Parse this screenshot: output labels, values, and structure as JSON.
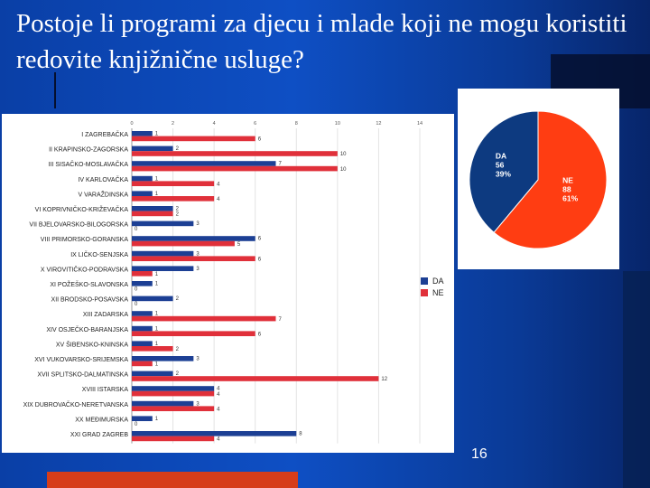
{
  "slide": {
    "title": "Postoje li programi za djecu i mlade koji ne mogu koristiti redovite knjižnične usluge?",
    "page_number": "16",
    "colors": {
      "background": "#0e4fc4",
      "da": "#1c3f94",
      "ne": "#e0303a",
      "pie_da": "#0d3a80",
      "pie_ne": "#ff3d12",
      "accent_bar": "#d63d1a"
    }
  },
  "chart_data": [
    {
      "type": "bar",
      "orientation": "horizontal",
      "categories": [
        "I ZAGREBAČKA",
        "II KRAPINSKO-ZAGORSKA",
        "III SISAČKO-MOSLAVAČKA",
        "IV KARLOVAČKA",
        "V VARAŽDINSKA",
        "VI KOPRIVNIČKO-KRIŽEVAČKA",
        "VII BJELOVARSKO-BILOGORSKA",
        "VIII PRIMORSKO-GORANSKA",
        "IX LIČKO-SENJSKA",
        "X VIROVITIČKO-PODRAVSKA",
        "XI POŽEŠKO-SLAVONSKA",
        "XII BRODSKO-POSAVSKA",
        "XIII ZADARSKA",
        "XIV OSJEČKO-BARANJSKA",
        "XV ŠIBENSKO-KNINSKA",
        "XVI VUKOVARSKO-SRIJEMSKA",
        "XVII SPLITSKO-DALMATINSKA",
        "XVIII ISTARSKA",
        "XIX DUBROVAČKO-NERETVANSKA",
        "XX MEĐIMURSKA",
        "XXI GRAD ZAGREB"
      ],
      "series": [
        {
          "name": "DA",
          "values": [
            1,
            2,
            7,
            1,
            1,
            2,
            3,
            6,
            3,
            3,
            1,
            2,
            1,
            1,
            1,
            3,
            2,
            4,
            3,
            1,
            8
          ]
        },
        {
          "name": "NE",
          "values": [
            6,
            10,
            10,
            4,
            4,
            2,
            0,
            5,
            6,
            1,
            0,
            0,
            7,
            6,
            2,
            1,
            12,
            4,
            4,
            0,
            4
          ]
        }
      ],
      "x_ticks": [
        "0",
        "2",
        "4",
        "6",
        "8",
        "10",
        "12",
        "14"
      ],
      "xlim": [
        0,
        14
      ],
      "legend": [
        "DA",
        "NE"
      ],
      "legend_position": "right"
    },
    {
      "type": "pie",
      "slices": [
        {
          "label": "DA",
          "value": 56,
          "percent": "39%"
        },
        {
          "label": "NE",
          "value": 88,
          "percent": "61%"
        }
      ]
    }
  ]
}
